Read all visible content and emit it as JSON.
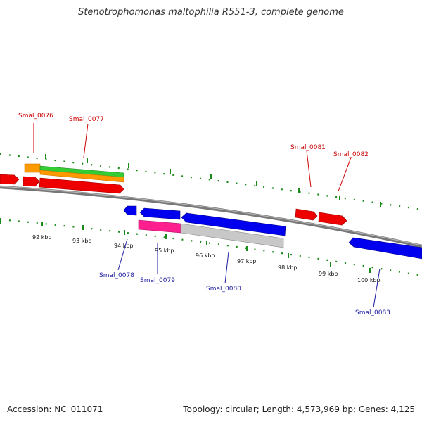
{
  "title": "Stenotrophomonas maltophilia R551-3, complete genome",
  "footer": {
    "accession": "Accession: NC_011071",
    "stats": "Topology: circular; Length: 4,573,969 bp; Genes: 4,125"
  },
  "colors": {
    "forward_label": "#cc0000",
    "reverse_label": "#1a1aa0",
    "forward_gene": "#ee0000",
    "reverse_gene": "#0000ee",
    "tick": "#1a8a1a",
    "orange_feature": "#ff9900",
    "green_feature": "#33cc33",
    "pink_feature": "#ff1f8f",
    "gray_feature": "#c8c8c8",
    "backbone": "#777777"
  },
  "kbp_labels": [
    "92 kbp",
    "93 kbp",
    "94 kbp",
    "95 kbp",
    "96 kbp",
    "97 kbp",
    "98 kbp",
    "99 kbp",
    "100 kbp"
  ],
  "forward_genes": [
    "Smal_0076",
    "Smal_0077",
    "Smal_0081",
    "Smal_0082"
  ],
  "reverse_genes": [
    "Smal_0078",
    "Smal_0079",
    "Smal_0080",
    "Smal_0083"
  ]
}
